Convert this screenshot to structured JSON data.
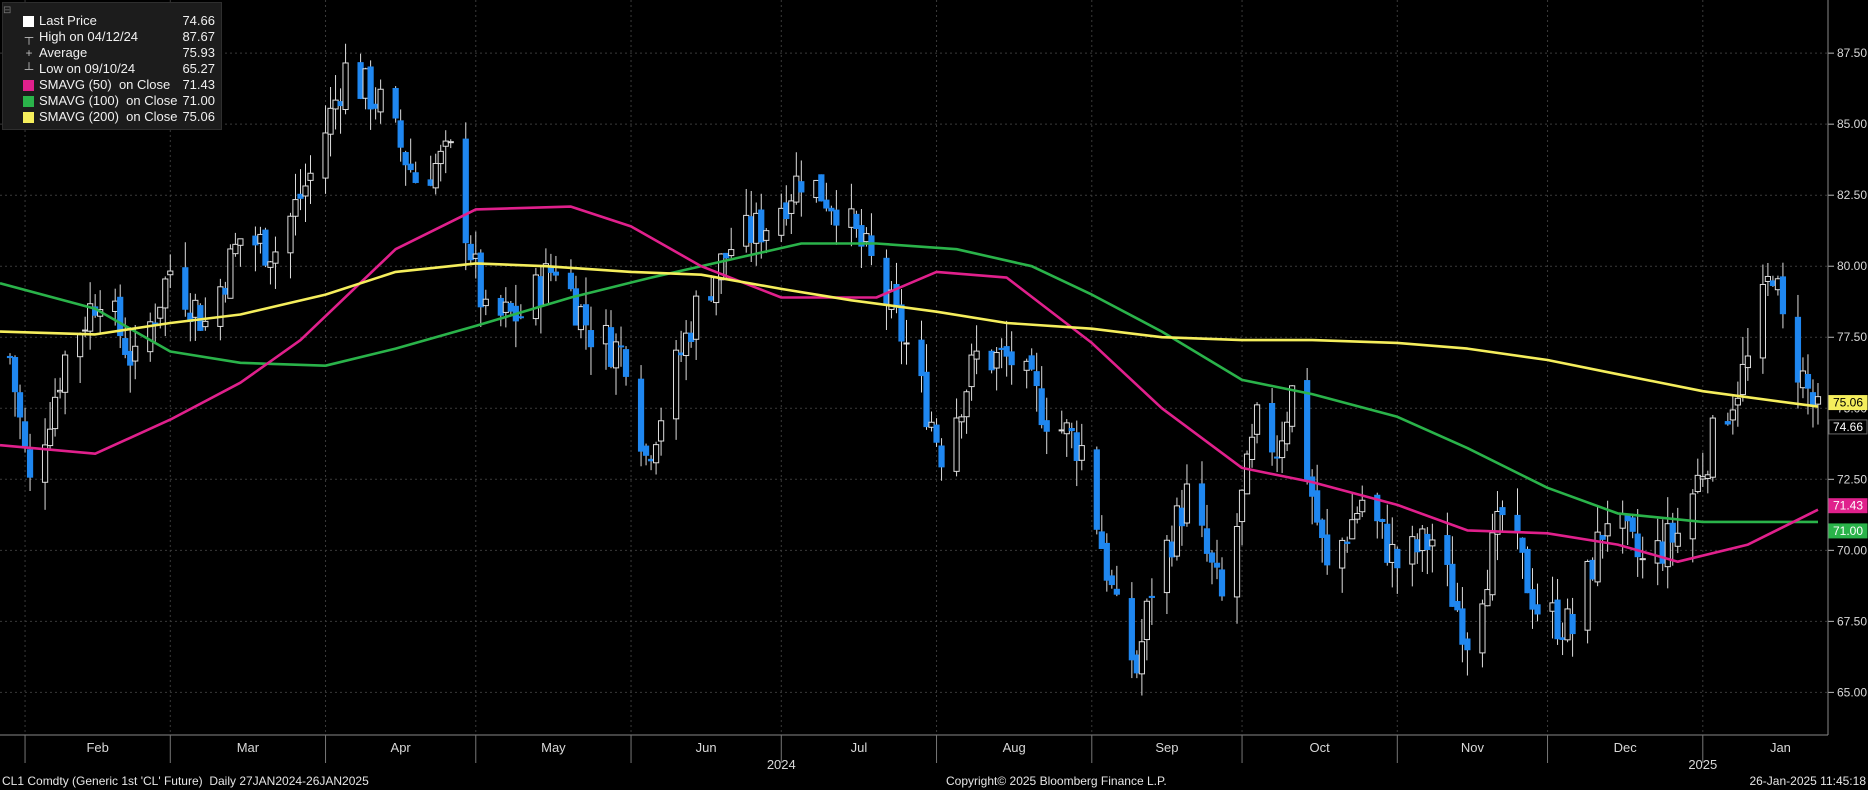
{
  "legend": {
    "collapse_glyph": "⊟",
    "items": [
      {
        "label": "Last Price",
        "value": "74.66",
        "color": "#ffffff",
        "icon": "square-swatch"
      },
      {
        "label": "High on 04/12/24",
        "value": "87.67",
        "icon": "high-marker-icon",
        "glyph": "┬"
      },
      {
        "label": "Average",
        "value": "75.93",
        "icon": "average-marker-icon",
        "glyph": "+"
      },
      {
        "label": "Low on 09/10/24",
        "value": "65.27",
        "icon": "low-marker-icon",
        "glyph": "┴"
      },
      {
        "label": "SMAVG (50)  on Close",
        "value": "71.43",
        "color": "#e0208c",
        "icon": "square-swatch"
      },
      {
        "label": "SMAVG (100)  on Close",
        "value": "71.00",
        "color": "#2ab34a",
        "icon": "square-swatch"
      },
      {
        "label": "SMAVG (200)  on Close",
        "value": "75.06",
        "color": "#f5ee5c",
        "icon": "square-swatch"
      }
    ]
  },
  "footer": {
    "left": "CL1 Comdty (Generic 1st 'CL' Future)  Daily 27JAN2024-26JAN2025",
    "center": "Copyright© 2025 Bloomberg Finance L.P.",
    "right": "26-Jan-2025 11:45:18"
  },
  "chart_data": {
    "type": "candlestick",
    "y_ticks": [
      "65.00",
      "67.50",
      "70.00",
      "72.50",
      "75.00",
      "77.50",
      "80.00",
      "82.50",
      "85.00",
      "87.50"
    ],
    "ylim": [
      63.5,
      89.3
    ],
    "x_months": [
      {
        "label": "Feb",
        "date": "2024-02-01"
      },
      {
        "label": "Mar",
        "date": "2024-03-01"
      },
      {
        "label": "Apr",
        "date": "2024-04-01"
      },
      {
        "label": "May",
        "date": "2024-05-01"
      },
      {
        "label": "Jun",
        "date": "2024-06-01"
      },
      {
        "label": "Jul",
        "date": "2024-07-01"
      },
      {
        "label": "Aug",
        "date": "2024-08-01"
      },
      {
        "label": "Sep",
        "date": "2024-09-01"
      },
      {
        "label": "Oct",
        "date": "2024-10-01"
      },
      {
        "label": "Nov",
        "date": "2024-11-01"
      },
      {
        "label": "Dec",
        "date": "2024-12-01"
      },
      {
        "label": "Jan",
        "date": "2025-01-01"
      }
    ],
    "x_years": [
      {
        "label": "2024",
        "date": "2024-07-01"
      },
      {
        "label": "2025",
        "date": "2025-01-01"
      }
    ],
    "xlim": [
      "2024-01-27",
      "2025-01-26"
    ],
    "price_tags": [
      {
        "value": 75.06,
        "text": "75.06",
        "color": "#f5ee5c",
        "text_color": "#000000"
      },
      {
        "value": 74.66,
        "text": "74.66",
        "color": "#000000",
        "text_color": "#ffffff"
      },
      {
        "value": 71.43,
        "text": "71.43",
        "color": "#e0208c",
        "text_color": "#ffffff"
      },
      {
        "value": 71.0,
        "text": "71.00",
        "color": "#2ab34a",
        "text_color": "#ffffff"
      }
    ],
    "close_anchors": [
      [
        "2024-01-29",
        76.8
      ],
      [
        "2024-02-02",
        72.3
      ],
      [
        "2024-02-09",
        76.8
      ],
      [
        "2024-02-16",
        79.2
      ],
      [
        "2024-02-23",
        76.5
      ],
      [
        "2024-03-01",
        79.9
      ],
      [
        "2024-03-08",
        78.0
      ],
      [
        "2024-03-15",
        81.0
      ],
      [
        "2024-03-22",
        80.6
      ],
      [
        "2024-03-29",
        83.2
      ],
      [
        "2024-04-05",
        86.9
      ],
      [
        "2024-04-12",
        85.7
      ],
      [
        "2024-04-19",
        83.1
      ],
      [
        "2024-04-26",
        83.9
      ],
      [
        "2024-05-03",
        78.1
      ],
      [
        "2024-05-10",
        78.3
      ],
      [
        "2024-05-17",
        80.1
      ],
      [
        "2024-05-24",
        77.7
      ],
      [
        "2024-05-31",
        76.9
      ],
      [
        "2024-06-04",
        73.3
      ],
      [
        "2024-06-14",
        78.5
      ],
      [
        "2024-06-21",
        80.7
      ],
      [
        "2024-06-28",
        81.5
      ],
      [
        "2024-07-05",
        83.2
      ],
      [
        "2024-07-12",
        82.2
      ],
      [
        "2024-07-19",
        80.1
      ],
      [
        "2024-07-26",
        77.2
      ],
      [
        "2024-08-02",
        73.5
      ],
      [
        "2024-08-09",
        76.8
      ],
      [
        "2024-08-16",
        76.7
      ],
      [
        "2024-08-23",
        74.8
      ],
      [
        "2024-08-30",
        73.6
      ],
      [
        "2024-09-06",
        67.7
      ],
      [
        "2024-09-10",
        65.8
      ],
      [
        "2024-09-13",
        68.7
      ],
      [
        "2024-09-20",
        71.9
      ],
      [
        "2024-09-27",
        68.2
      ],
      [
        "2024-10-04",
        74.4
      ],
      [
        "2024-10-08",
        73.6
      ],
      [
        "2024-10-11",
        75.6
      ],
      [
        "2024-10-18",
        69.2
      ],
      [
        "2024-10-25",
        71.8
      ],
      [
        "2024-11-01",
        69.5
      ],
      [
        "2024-11-08",
        70.4
      ],
      [
        "2024-11-15",
        67.0
      ],
      [
        "2024-11-22",
        71.2
      ],
      [
        "2024-11-29",
        68.0
      ],
      [
        "2024-12-06",
        67.2
      ],
      [
        "2024-12-13",
        71.3
      ],
      [
        "2024-12-20",
        69.5
      ],
      [
        "2024-12-27",
        70.6
      ],
      [
        "2025-01-03",
        73.9
      ],
      [
        "2025-01-10",
        76.6
      ],
      [
        "2025-01-15",
        80.0
      ],
      [
        "2025-01-17",
        77.9
      ],
      [
        "2025-01-24",
        74.66
      ]
    ],
    "sma50": [
      [
        "2024-01-27",
        73.7
      ],
      [
        "2024-02-15",
        73.4
      ],
      [
        "2024-03-01",
        74.6
      ],
      [
        "2024-03-15",
        75.9
      ],
      [
        "2024-03-27",
        77.4
      ],
      [
        "2024-04-15",
        80.6
      ],
      [
        "2024-05-01",
        82.0
      ],
      [
        "2024-05-20",
        82.1
      ],
      [
        "2024-06-01",
        81.4
      ],
      [
        "2024-06-15",
        80.0
      ],
      [
        "2024-07-01",
        78.9
      ],
      [
        "2024-07-20",
        78.9
      ],
      [
        "2024-08-01",
        79.8
      ],
      [
        "2024-08-15",
        79.6
      ],
      [
        "2024-09-01",
        77.3
      ],
      [
        "2024-09-15",
        75.0
      ],
      [
        "2024-10-01",
        72.9
      ],
      [
        "2024-10-15",
        72.4
      ],
      [
        "2024-11-01",
        71.6
      ],
      [
        "2024-11-15",
        70.7
      ],
      [
        "2024-12-01",
        70.6
      ],
      [
        "2024-12-15",
        70.2
      ],
      [
        "2024-12-27",
        69.6
      ],
      [
        "2025-01-10",
        70.2
      ],
      [
        "2025-01-24",
        71.43
      ]
    ],
    "sma100": [
      [
        "2024-01-27",
        79.4
      ],
      [
        "2024-02-15",
        78.5
      ],
      [
        "2024-03-01",
        77.0
      ],
      [
        "2024-03-15",
        76.6
      ],
      [
        "2024-04-01",
        76.5
      ],
      [
        "2024-04-15",
        77.1
      ],
      [
        "2024-05-01",
        77.9
      ],
      [
        "2024-05-20",
        78.9
      ],
      [
        "2024-06-05",
        79.6
      ],
      [
        "2024-06-20",
        80.2
      ],
      [
        "2024-07-05",
        80.8
      ],
      [
        "2024-07-20",
        80.8
      ],
      [
        "2024-08-05",
        80.6
      ],
      [
        "2024-08-20",
        80.0
      ],
      [
        "2024-09-01",
        79.0
      ],
      [
        "2024-09-15",
        77.7
      ],
      [
        "2024-10-01",
        76.0
      ],
      [
        "2024-10-15",
        75.5
      ],
      [
        "2024-11-01",
        74.7
      ],
      [
        "2024-11-15",
        73.6
      ],
      [
        "2024-12-01",
        72.2
      ],
      [
        "2024-12-15",
        71.3
      ],
      [
        "2025-01-01",
        71.0
      ],
      [
        "2025-01-24",
        71.0
      ]
    ],
    "sma200": [
      [
        "2024-01-27",
        77.7
      ],
      [
        "2024-02-15",
        77.6
      ],
      [
        "2024-03-01",
        78.0
      ],
      [
        "2024-03-15",
        78.3
      ],
      [
        "2024-04-01",
        79.0
      ],
      [
        "2024-04-15",
        79.8
      ],
      [
        "2024-05-01",
        80.1
      ],
      [
        "2024-05-15",
        80.0
      ],
      [
        "2024-06-01",
        79.8
      ],
      [
        "2024-06-15",
        79.7
      ],
      [
        "2024-07-01",
        79.2
      ],
      [
        "2024-07-15",
        78.8
      ],
      [
        "2024-08-01",
        78.4
      ],
      [
        "2024-08-15",
        78.0
      ],
      [
        "2024-09-01",
        77.8
      ],
      [
        "2024-09-15",
        77.5
      ],
      [
        "2024-10-01",
        77.4
      ],
      [
        "2024-10-15",
        77.4
      ],
      [
        "2024-11-01",
        77.3
      ],
      [
        "2024-11-15",
        77.1
      ],
      [
        "2024-12-01",
        76.7
      ],
      [
        "2024-12-15",
        76.2
      ],
      [
        "2025-01-01",
        75.6
      ],
      [
        "2025-01-24",
        75.06
      ]
    ],
    "colors": {
      "up_body": "#000000",
      "up_outline": "#dddddd",
      "down_body": "#1f87f0",
      "wick": "#dddddd",
      "grid": "#3a3a3a",
      "axis_text": "#d8d8d8",
      "sma50": "#e0208c",
      "sma100": "#2ab34a",
      "sma200": "#f5ee5c"
    },
    "grid": true
  }
}
